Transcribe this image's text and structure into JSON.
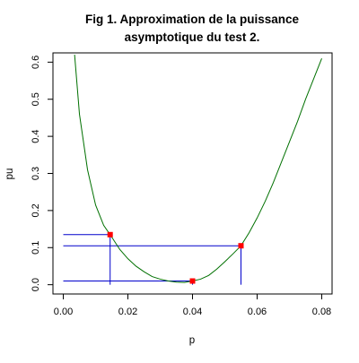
{
  "chart_data": {
    "type": "line",
    "title_line1": "Fig 1. Approximation de la puissance",
    "title_line2": "asymptotique du test 2.",
    "xlabel": "p",
    "ylabel": "pu",
    "xlim": [
      -0.0032,
      0.0832
    ],
    "ylim": [
      -0.025,
      0.625
    ],
    "x_ticks": [
      0.0,
      0.02,
      0.04,
      0.06,
      0.08
    ],
    "x_tick_labels": [
      "0.00",
      "0.02",
      "0.04",
      "0.06",
      "0.08"
    ],
    "y_ticks": [
      0.0,
      0.1,
      0.2,
      0.3,
      0.4,
      0.5,
      0.6
    ],
    "y_tick_labels": [
      "0.0",
      "0.1",
      "0.2",
      "0.3",
      "0.4",
      "0.5",
      "0.6"
    ],
    "grid": false,
    "curve_color": "#007000",
    "line_color": "#0000cc",
    "point_color": "#ff0000",
    "series": [
      {
        "x": [
          0.0035,
          0.005,
          0.0075,
          0.01,
          0.0125,
          0.0145,
          0.0175,
          0.02,
          0.0225,
          0.025,
          0.0275,
          0.03,
          0.0325,
          0.035,
          0.0375,
          0.04,
          0.0425,
          0.045,
          0.0475,
          0.05,
          0.0525,
          0.055,
          0.0575,
          0.06,
          0.0625,
          0.065,
          0.0675,
          0.07,
          0.0725,
          0.075,
          0.0775,
          0.08
        ],
        "y": [
          0.62,
          0.46,
          0.31,
          0.215,
          0.16,
          0.135,
          0.095,
          0.07,
          0.05,
          0.035,
          0.022,
          0.015,
          0.01,
          0.007,
          0.006,
          0.01,
          0.015,
          0.025,
          0.042,
          0.062,
          0.083,
          0.105,
          0.14,
          0.18,
          0.225,
          0.275,
          0.33,
          0.385,
          0.44,
          0.5,
          0.555,
          0.61
        ]
      }
    ],
    "points": [
      {
        "x": 0.0145,
        "y": 0.135
      },
      {
        "x": 0.04,
        "y": 0.01
      },
      {
        "x": 0.055,
        "y": 0.105
      }
    ]
  }
}
